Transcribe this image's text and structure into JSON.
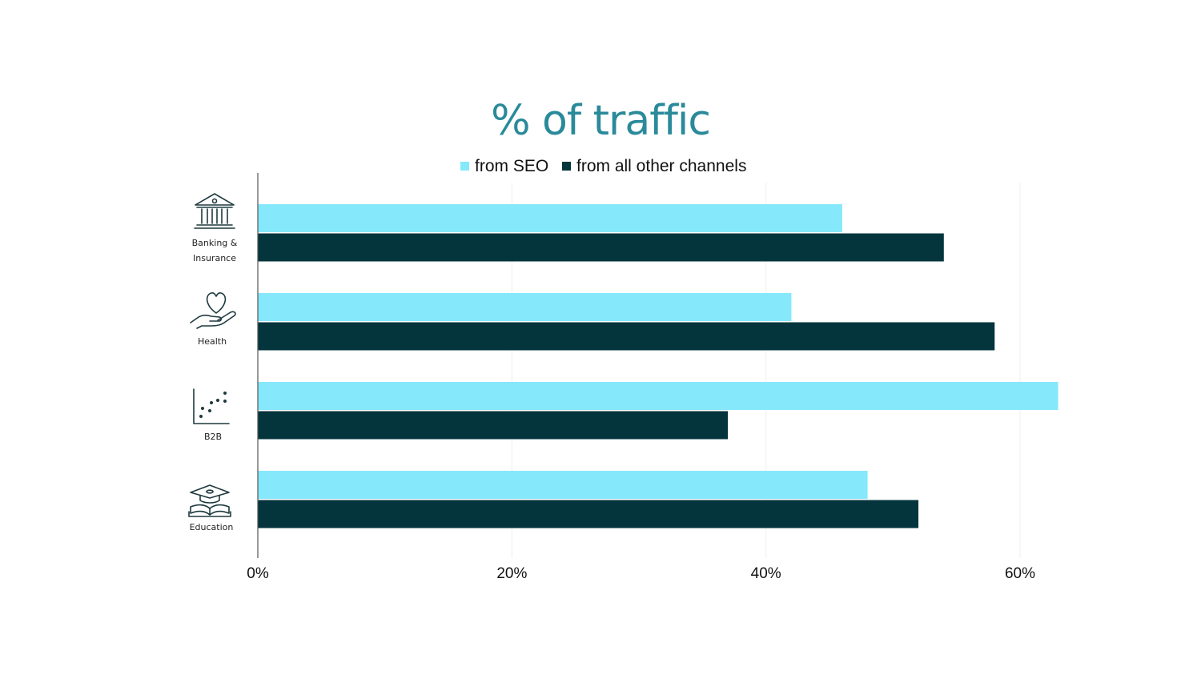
{
  "chart_data": {
    "type": "bar",
    "orientation": "horizontal",
    "title": "% of traffic",
    "categories": [
      "Banking & Insurance",
      "Health",
      "B2B",
      "Education"
    ],
    "category_lines": [
      [
        "Banking &",
        "Insurance"
      ],
      [
        "Health"
      ],
      [
        "B2B"
      ],
      [
        "Education"
      ]
    ],
    "category_icons": [
      "bank-icon",
      "heart-hand-icon",
      "scatter-plot-icon",
      "graduation-book-icon"
    ],
    "series": [
      {
        "name": "from SEO",
        "color": "#86e8fb",
        "values": [
          46,
          42,
          63,
          48
        ]
      },
      {
        "name": "from all other channels",
        "color": "#04353d",
        "values": [
          54,
          58,
          37,
          52
        ]
      }
    ],
    "xlim": [
      0,
      60
    ],
    "xticks": [
      0,
      20,
      40,
      60
    ],
    "xtick_labels": [
      "0%",
      "20%",
      "40%",
      "60%"
    ],
    "grid": true,
    "legend_position": "top"
  }
}
